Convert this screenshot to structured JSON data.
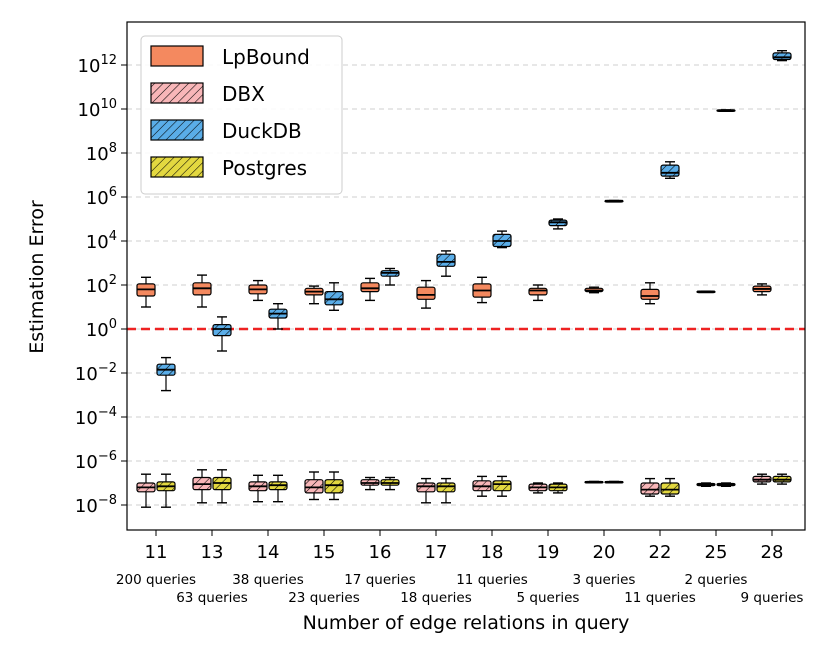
{
  "chart_data": {
    "type": "boxplot",
    "xlabel": "Number of edge relations in query",
    "ylabel": "Estimation Error",
    "yscale": "log",
    "ylim_exp": [
      -9.2,
      13.6
    ],
    "y_tick_exponents": [
      -8,
      -6,
      -4,
      -2,
      0,
      2,
      4,
      6,
      8,
      10,
      12
    ],
    "y_tick_base": "10",
    "grid": "horizontal dashed",
    "reference_line": {
      "value": 1,
      "color": "#ee2222",
      "style": "dashed"
    },
    "legend_position": "top-left",
    "categories": [
      "11",
      "13",
      "14",
      "15",
      "16",
      "17",
      "18",
      "19",
      "20",
      "22",
      "25",
      "28"
    ],
    "query_counts": [
      "200 queries",
      "63 queries",
      "38 queries",
      "23 queries",
      "17 queries",
      "18 queries",
      "11 queries",
      "5 queries",
      "3 queries",
      "11 queries",
      "2 queries",
      "9 queries"
    ],
    "series": [
      {
        "name": "LpBound",
        "color": "#f4895f",
        "hatch": false,
        "boxes": [
          {
            "cat": "11",
            "whislo": 1.0,
            "q1": 1.5,
            "med": 1.8,
            "q3": 2.05,
            "whishi": 2.35
          },
          {
            "cat": "13",
            "whislo": 1.0,
            "q1": 1.55,
            "med": 1.85,
            "q3": 2.1,
            "whishi": 2.45
          },
          {
            "cat": "14",
            "whislo": 1.3,
            "q1": 1.6,
            "med": 1.8,
            "q3": 2.0,
            "whishi": 2.2
          },
          {
            "cat": "15",
            "whislo": 1.15,
            "q1": 1.55,
            "med": 1.7,
            "q3": 1.85,
            "whishi": 1.95
          },
          {
            "cat": "16",
            "whislo": 1.3,
            "q1": 1.7,
            "med": 1.85,
            "q3": 2.1,
            "whishi": 2.3
          },
          {
            "cat": "17",
            "whislo": 0.95,
            "q1": 1.35,
            "med": 1.55,
            "q3": 1.9,
            "whishi": 2.2
          },
          {
            "cat": "18",
            "whislo": 1.2,
            "q1": 1.45,
            "med": 1.75,
            "q3": 2.05,
            "whishi": 2.35
          },
          {
            "cat": "19",
            "whislo": 1.3,
            "q1": 1.55,
            "med": 1.75,
            "q3": 1.85,
            "whishi": 2.0
          },
          {
            "cat": "20",
            "whislo": 1.65,
            "q1": 1.7,
            "med": 1.75,
            "q3": 1.85,
            "whishi": 1.9
          },
          {
            "cat": "22",
            "whislo": 1.15,
            "q1": 1.35,
            "med": 1.5,
            "q3": 1.8,
            "whishi": 2.1
          },
          {
            "cat": "25",
            "whislo": 1.7,
            "q1": 1.7,
            "med": 1.7,
            "q3": 1.72,
            "whishi": 1.72
          },
          {
            "cat": "28",
            "whislo": 1.55,
            "q1": 1.7,
            "med": 1.82,
            "q3": 1.95,
            "whishi": 2.05
          }
        ]
      },
      {
        "name": "DBX",
        "color": "#f8b6b8",
        "hatch": true,
        "boxes": [
          {
            "cat": "11",
            "whislo": -8.1,
            "q1": -7.4,
            "med": -7.2,
            "q3": -7.0,
            "whishi": -6.6
          },
          {
            "cat": "13",
            "whislo": -7.9,
            "q1": -7.3,
            "med": -7.05,
            "q3": -6.75,
            "whishi": -6.4
          },
          {
            "cat": "14",
            "whislo": -7.85,
            "q1": -7.35,
            "med": -7.15,
            "q3": -6.95,
            "whishi": -6.65
          },
          {
            "cat": "15",
            "whislo": -7.75,
            "q1": -7.45,
            "med": -7.2,
            "q3": -6.85,
            "whishi": -6.5
          },
          {
            "cat": "16",
            "whislo": -7.3,
            "q1": -7.1,
            "med": -7.0,
            "q3": -6.85,
            "whishi": -6.75
          },
          {
            "cat": "17",
            "whislo": -7.9,
            "q1": -7.4,
            "med": -7.15,
            "q3": -7.0,
            "whishi": -6.8
          },
          {
            "cat": "18",
            "whislo": -7.6,
            "q1": -7.35,
            "med": -7.15,
            "q3": -6.9,
            "whishi": -6.7
          },
          {
            "cat": "19",
            "whislo": -7.45,
            "q1": -7.35,
            "med": -7.2,
            "q3": -7.05,
            "whishi": -7.0
          },
          {
            "cat": "20",
            "whislo": -6.98,
            "q1": -6.98,
            "med": -6.95,
            "q3": -6.93,
            "whishi": -6.93
          },
          {
            "cat": "22",
            "whislo": -7.6,
            "q1": -7.5,
            "med": -7.3,
            "q3": -7.0,
            "whishi": -6.8
          },
          {
            "cat": "25",
            "whislo": -7.15,
            "q1": -7.12,
            "med": -7.08,
            "q3": -7.02,
            "whishi": -7.0
          },
          {
            "cat": "28",
            "whislo": -7.05,
            "q1": -6.95,
            "med": -6.85,
            "q3": -6.7,
            "whishi": -6.6
          }
        ]
      },
      {
        "name": "DuckDB",
        "color": "#5aade8",
        "hatch": true,
        "boxes": [
          {
            "cat": "11",
            "whislo": -2.8,
            "q1": -2.1,
            "med": -1.85,
            "q3": -1.6,
            "whishi": -1.3
          },
          {
            "cat": "13",
            "whislo": -1.0,
            "q1": -0.3,
            "med": 0.0,
            "q3": 0.2,
            "whishi": 0.55
          },
          {
            "cat": "14",
            "whislo": 0.0,
            "q1": 0.5,
            "med": 0.7,
            "q3": 0.9,
            "whishi": 1.15
          },
          {
            "cat": "15",
            "whislo": 0.85,
            "q1": 1.1,
            "med": 1.35,
            "q3": 1.7,
            "whishi": 2.1
          },
          {
            "cat": "16",
            "whislo": 2.0,
            "q1": 2.4,
            "med": 2.55,
            "q3": 2.65,
            "whishi": 2.75
          },
          {
            "cat": "17",
            "whislo": 2.4,
            "q1": 2.85,
            "med": 3.05,
            "q3": 3.4,
            "whishi": 3.55
          },
          {
            "cat": "18",
            "whislo": 3.7,
            "q1": 3.75,
            "med": 4.0,
            "q3": 4.3,
            "whishi": 4.45
          },
          {
            "cat": "19",
            "whislo": 4.55,
            "q1": 4.7,
            "med": 4.85,
            "q3": 4.95,
            "whishi": 5.0
          },
          {
            "cat": "20",
            "whislo": 5.82,
            "q1": 5.82,
            "med": 5.83,
            "q3": 5.84,
            "whishi": 5.84
          },
          {
            "cat": "22",
            "whislo": 6.85,
            "q1": 6.95,
            "med": 7.1,
            "q3": 7.45,
            "whishi": 7.6
          },
          {
            "cat": "25",
            "whislo": 9.9,
            "q1": 9.9,
            "med": 9.93,
            "q3": 9.96,
            "whishi": 9.96
          },
          {
            "cat": "28",
            "whislo": 12.2,
            "q1": 12.25,
            "med": 12.35,
            "q3": 12.55,
            "whishi": 12.65
          }
        ]
      },
      {
        "name": "Postgres",
        "color": "#e3d840",
        "hatch": true,
        "boxes": [
          {
            "cat": "11",
            "whislo": -8.1,
            "q1": -7.35,
            "med": -7.15,
            "q3": -6.95,
            "whishi": -6.6
          },
          {
            "cat": "13",
            "whislo": -7.9,
            "q1": -7.3,
            "med": -7.0,
            "q3": -6.75,
            "whishi": -6.4
          },
          {
            "cat": "14",
            "whislo": -7.85,
            "q1": -7.3,
            "med": -7.1,
            "q3": -6.95,
            "whishi": -6.65
          },
          {
            "cat": "15",
            "whislo": -7.75,
            "q1": -7.45,
            "med": -7.1,
            "q3": -6.85,
            "whishi": -6.5
          },
          {
            "cat": "16",
            "whislo": -7.3,
            "q1": -7.1,
            "med": -7.0,
            "q3": -6.85,
            "whishi": -6.75
          },
          {
            "cat": "17",
            "whislo": -7.9,
            "q1": -7.4,
            "med": -7.15,
            "q3": -7.0,
            "whishi": -6.8
          },
          {
            "cat": "18",
            "whislo": -7.6,
            "q1": -7.35,
            "med": -7.05,
            "q3": -6.9,
            "whishi": -6.7
          },
          {
            "cat": "19",
            "whislo": -7.45,
            "q1": -7.35,
            "med": -7.2,
            "q3": -7.05,
            "whishi": -7.0
          },
          {
            "cat": "20",
            "whislo": -6.98,
            "q1": -6.98,
            "med": -6.95,
            "q3": -6.93,
            "whishi": -6.93
          },
          {
            "cat": "22",
            "whislo": -7.6,
            "q1": -7.5,
            "med": -7.3,
            "q3": -7.0,
            "whishi": -6.8
          },
          {
            "cat": "25",
            "whislo": -7.15,
            "q1": -7.12,
            "med": -7.08,
            "q3": -7.02,
            "whishi": -7.0
          },
          {
            "cat": "28",
            "whislo": -7.05,
            "q1": -6.95,
            "med": -6.85,
            "q3": -6.7,
            "whishi": -6.6
          }
        ]
      }
    ]
  }
}
